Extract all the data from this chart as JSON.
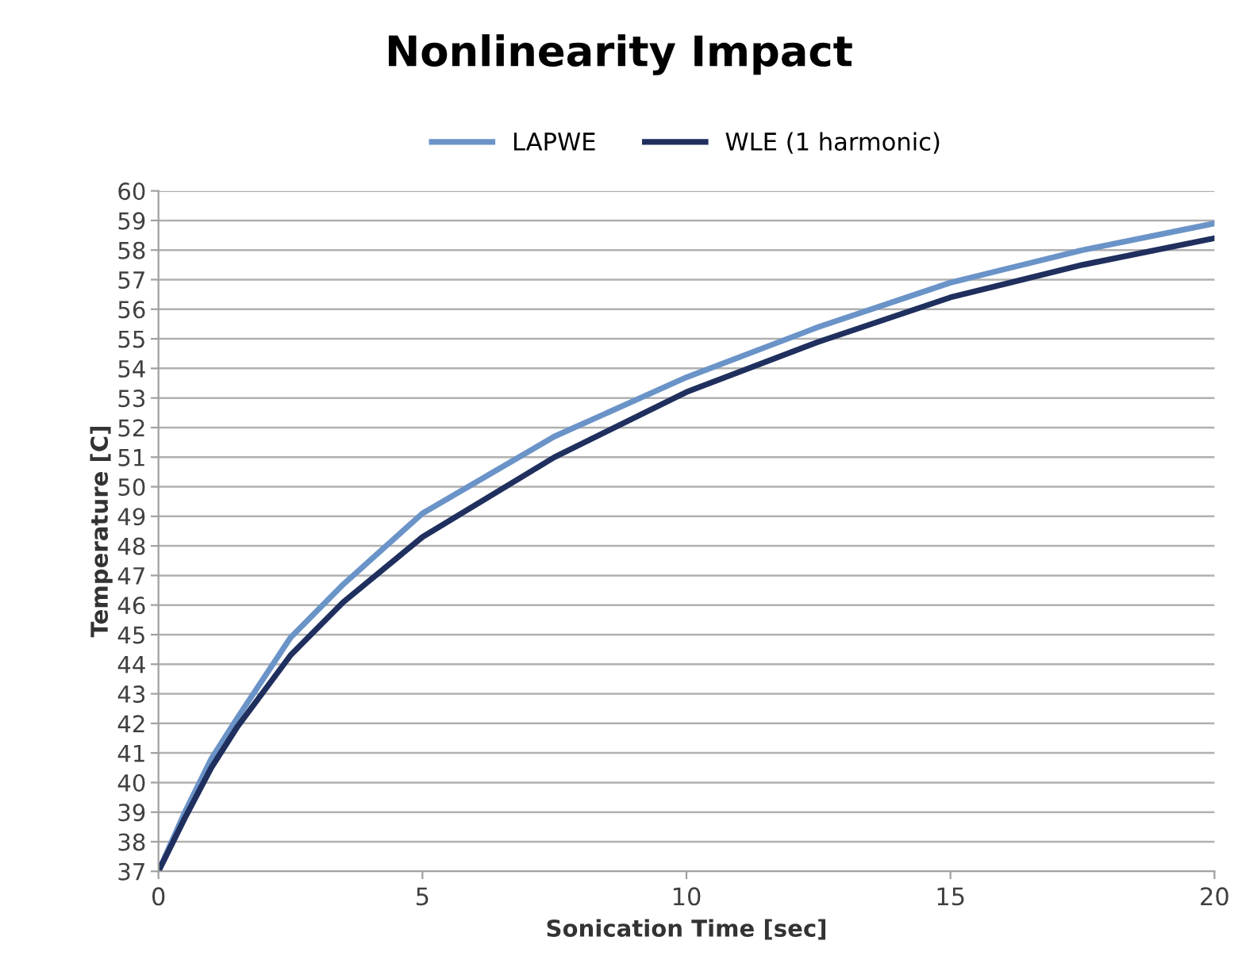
{
  "chart_data": {
    "type": "line",
    "title": "Nonlinearity Impact",
    "xlabel": "Sonication Time [sec]",
    "ylabel": "Temperature [C]",
    "x": [
      0,
      0.5,
      1,
      1.5,
      2.5,
      3.5,
      5,
      7.5,
      10,
      12.5,
      15,
      17.5,
      20
    ],
    "series": [
      {
        "name": "LAPWE",
        "color": "#6a93c8",
        "values": [
          37,
          39.0,
          40.8,
          42.2,
          44.9,
          46.7,
          49.1,
          51.7,
          53.7,
          55.4,
          56.9,
          58.0,
          58.9
        ]
      },
      {
        "name": "WLE (1 harmonic)",
        "color": "#1f2f5e",
        "values": [
          37,
          38.8,
          40.5,
          41.9,
          44.3,
          46.1,
          48.3,
          51.0,
          53.2,
          54.9,
          56.4,
          57.5,
          58.4
        ]
      }
    ],
    "xlim": [
      0,
      20
    ],
    "xticks": [
      0,
      5,
      10,
      15,
      20
    ],
    "ylim": [
      37,
      60
    ],
    "yticks": [
      37,
      38,
      39,
      40,
      41,
      42,
      43,
      44,
      45,
      46,
      47,
      48,
      49,
      50,
      51,
      52,
      53,
      54,
      55,
      56,
      57,
      58,
      59,
      60
    ],
    "grid": "y",
    "legend": "top",
    "marker": "none",
    "line_style": "solid"
  }
}
